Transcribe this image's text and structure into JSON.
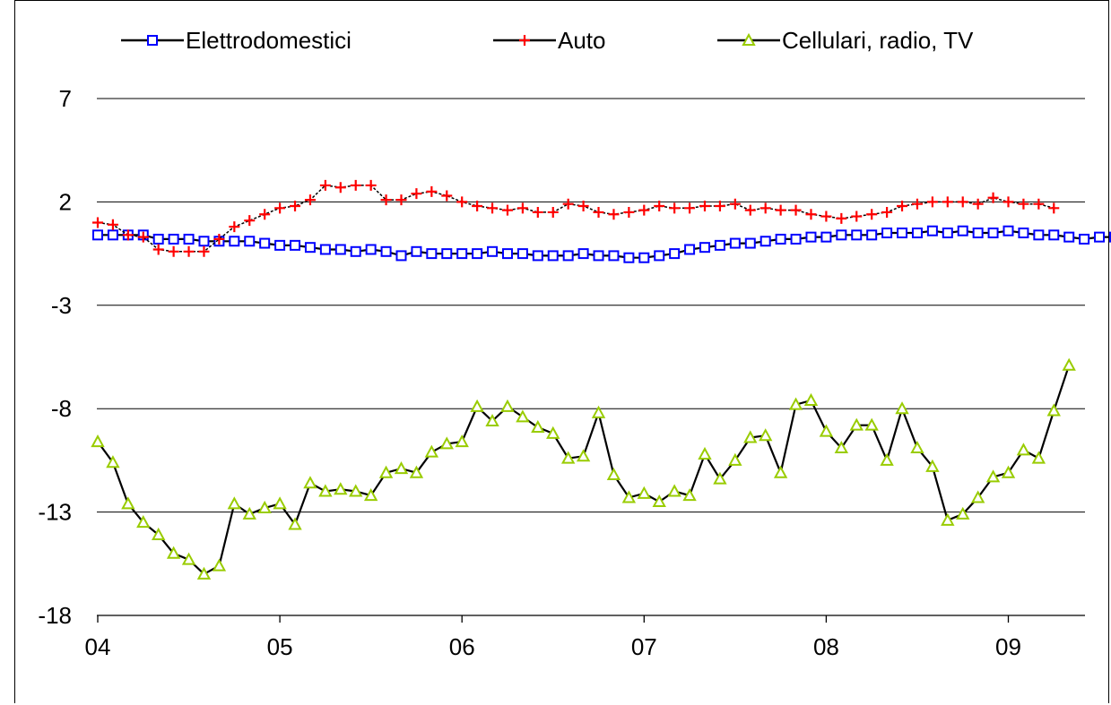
{
  "chart_data": {
    "type": "line",
    "title": "",
    "xlabel": "",
    "ylabel": "",
    "x_tick_labels": [
      "04",
      "05",
      "06",
      "07",
      "08",
      "09"
    ],
    "y_tick_labels": [
      "7",
      "2",
      "-3",
      "-8",
      "-13",
      "-18"
    ],
    "y_ticks": [
      7,
      2,
      -3,
      -8,
      -13,
      -18
    ],
    "ylim": [
      -18,
      7
    ],
    "x_start": 2004.0,
    "x_step_months": 1,
    "grid": "horizontal",
    "legend_position": "top",
    "series": [
      {
        "name": "Elettrodomestici",
        "color": "#0000ff",
        "line_color": "#000000",
        "marker": "square",
        "values": [
          0.4,
          0.4,
          0.4,
          0.4,
          0.2,
          0.2,
          0.2,
          0.1,
          0.1,
          0.1,
          0.1,
          0.0,
          -0.1,
          -0.1,
          -0.2,
          -0.3,
          -0.3,
          -0.4,
          -0.3,
          -0.4,
          -0.6,
          -0.4,
          -0.5,
          -0.5,
          -0.5,
          -0.5,
          -0.4,
          -0.5,
          -0.5,
          -0.6,
          -0.6,
          -0.6,
          -0.5,
          -0.6,
          -0.6,
          -0.7,
          -0.7,
          -0.6,
          -0.5,
          -0.3,
          -0.2,
          -0.1,
          0.0,
          0.0,
          0.1,
          0.2,
          0.2,
          0.3,
          0.3,
          0.4,
          0.4,
          0.4,
          0.5,
          0.5,
          0.5,
          0.6,
          0.5,
          0.6,
          0.5,
          0.5,
          0.6,
          0.5,
          0.4,
          0.4,
          0.3,
          0.2,
          0.3,
          0.3
        ]
      },
      {
        "name": "Auto",
        "color": "#ff0000",
        "line_color": "#000000",
        "marker": "plus",
        "values": [
          1.0,
          0.9,
          0.4,
          0.3,
          -0.3,
          -0.4,
          -0.4,
          -0.4,
          0.2,
          0.8,
          1.1,
          1.4,
          1.7,
          1.8,
          2.1,
          2.8,
          2.7,
          2.8,
          2.8,
          2.1,
          2.1,
          2.4,
          2.5,
          2.3,
          2.0,
          1.8,
          1.7,
          1.6,
          1.7,
          1.5,
          1.5,
          1.9,
          1.8,
          1.5,
          1.4,
          1.5,
          1.6,
          1.8,
          1.7,
          1.7,
          1.8,
          1.8,
          1.9,
          1.6,
          1.7,
          1.6,
          1.6,
          1.4,
          1.3,
          1.2,
          1.3,
          1.4,
          1.5,
          1.8,
          1.9,
          2.0,
          2.0,
          2.0,
          1.9,
          2.2,
          2.0,
          1.9,
          1.9,
          1.7
        ]
      },
      {
        "name": "Cellulari, radio, TV",
        "color": "#99cc00",
        "line_color": "#000000",
        "marker": "triangle",
        "values": [
          -9.6,
          -10.6,
          -12.6,
          -13.5,
          -14.1,
          -15.0,
          -15.3,
          -16.0,
          -15.6,
          -12.6,
          -13.1,
          -12.8,
          -12.6,
          -13.6,
          -11.6,
          -12.0,
          -11.9,
          -12.0,
          -12.2,
          -11.1,
          -10.9,
          -11.1,
          -10.1,
          -9.7,
          -9.6,
          -7.9,
          -8.6,
          -7.9,
          -8.4,
          -8.9,
          -9.2,
          -10.4,
          -10.3,
          -8.2,
          -11.2,
          -12.3,
          -12.1,
          -12.5,
          -12.0,
          -12.2,
          -10.2,
          -11.4,
          -10.5,
          -9.4,
          -9.3,
          -11.1,
          -7.8,
          -7.6,
          -9.1,
          -9.9,
          -8.8,
          -8.8,
          -10.5,
          -8.0,
          -9.9,
          -10.8,
          -13.4,
          -13.1,
          -12.3,
          -11.3,
          -11.1,
          -10.0,
          -10.4,
          -8.1,
          -5.9
        ]
      }
    ]
  }
}
